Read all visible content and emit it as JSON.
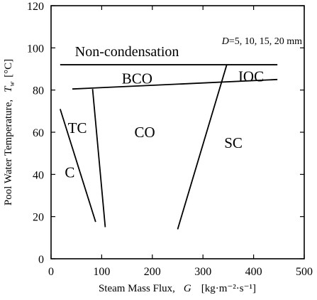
{
  "chart_data": {
    "type": "line",
    "xlabel": "Steam Mass Flux,",
    "xlabel_symbol": "G",
    "xlabel_unit": "[kg·m⁻²·s⁻¹]",
    "ylabel": "Pool Water Temperature,",
    "ylabel_symbol": "T",
    "ylabel_subscript": "w",
    "ylabel_unit": "[°C]",
    "xlim": [
      0,
      500
    ],
    "ylim": [
      0,
      120
    ],
    "x_ticks": [
      0,
      100,
      200,
      300,
      400,
      500
    ],
    "y_ticks": [
      0,
      20,
      40,
      60,
      80,
      100,
      120
    ],
    "grid": false,
    "annotation": {
      "italic": "D",
      "text": "=5, 10, 15, 20 mm"
    },
    "regions": [
      {
        "label": "Non-condensation",
        "x": 150,
        "y": 98.5
      },
      {
        "label": "BCO",
        "x": 170,
        "y": 85.5
      },
      {
        "label": "IOC",
        "x": 395,
        "y": 86.5
      },
      {
        "label": "TC",
        "x": 52,
        "y": 62
      },
      {
        "label": "CO",
        "x": 185,
        "y": 60
      },
      {
        "label": "SC",
        "x": 360,
        "y": 55
      },
      {
        "label": "C",
        "x": 37,
        "y": 41
      }
    ],
    "series": [
      {
        "values": [
          [
            18,
            92
          ],
          [
            447,
            92
          ]
        ]
      },
      {
        "values": [
          [
            42,
            80.5
          ],
          [
            447,
            85
          ]
        ]
      },
      {
        "values": [
          [
            18,
            71
          ],
          [
            88,
            17.5
          ]
        ]
      },
      {
        "values": [
          [
            82,
            80.5
          ],
          [
            107,
            15
          ]
        ]
      },
      {
        "values": [
          [
            250,
            14
          ],
          [
            347,
            92
          ]
        ]
      }
    ]
  }
}
